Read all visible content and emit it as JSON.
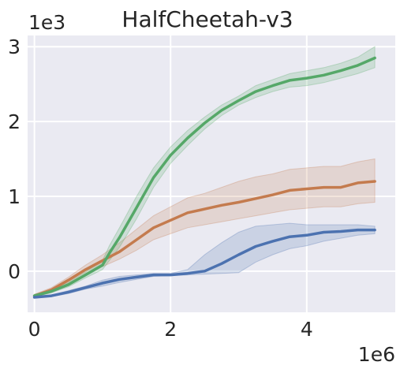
{
  "chart_data": {
    "type": "line",
    "title": "HalfCheetah-v3",
    "xlabel": "",
    "ylabel": "",
    "x_offset_label": "1e6",
    "y_offset_label": "1e3",
    "xlim": [
      -0.1,
      5.3
    ],
    "ylim": [
      -0.55,
      3.15
    ],
    "x_ticks": [
      0,
      2,
      4
    ],
    "x_tick_labels": [
      "0",
      "2",
      "4"
    ],
    "y_ticks": [
      0,
      1,
      2,
      3
    ],
    "y_tick_labels": [
      "0",
      "1",
      "2",
      "3"
    ],
    "grid": true,
    "legend": "none",
    "background": "#EAEAF2",
    "grid_color": "#ffffff",
    "series": [
      {
        "color": "#C47B4E",
        "x": [
          0,
          0.25,
          0.5,
          0.75,
          1.0,
          1.25,
          1.5,
          1.75,
          2.0,
          2.25,
          2.5,
          2.75,
          3.0,
          3.25,
          3.5,
          3.75,
          4.0,
          4.25,
          4.5,
          4.75,
          5.0
        ],
        "y": [
          -0.33,
          -0.25,
          -0.12,
          0.02,
          0.14,
          0.26,
          0.42,
          0.58,
          0.68,
          0.78,
          0.83,
          0.88,
          0.92,
          0.97,
          1.02,
          1.08,
          1.1,
          1.12,
          1.12,
          1.18,
          1.2
        ],
        "lower": [
          -0.35,
          -0.28,
          -0.16,
          -0.04,
          0.06,
          0.16,
          0.28,
          0.42,
          0.5,
          0.58,
          0.62,
          0.66,
          0.7,
          0.74,
          0.78,
          0.82,
          0.84,
          0.86,
          0.86,
          0.9,
          0.92
        ],
        "upper": [
          -0.31,
          -0.22,
          -0.08,
          0.08,
          0.22,
          0.38,
          0.56,
          0.74,
          0.86,
          0.98,
          1.04,
          1.12,
          1.2,
          1.26,
          1.3,
          1.36,
          1.38,
          1.4,
          1.4,
          1.46,
          1.5
        ]
      },
      {
        "color": "#55A868",
        "x": [
          0,
          0.25,
          0.5,
          0.75,
          1.0,
          1.1,
          1.25,
          1.5,
          1.75,
          2.0,
          2.25,
          2.5,
          2.75,
          3.0,
          3.25,
          3.5,
          3.75,
          4.0,
          4.25,
          4.5,
          4.75,
          5.0
        ],
        "y": [
          -0.33,
          -0.27,
          -0.18,
          -0.05,
          0.08,
          0.24,
          0.45,
          0.85,
          1.25,
          1.55,
          1.78,
          1.98,
          2.15,
          2.28,
          2.4,
          2.48,
          2.55,
          2.58,
          2.62,
          2.68,
          2.75,
          2.85
        ],
        "lower": [
          -0.35,
          -0.29,
          -0.21,
          -0.09,
          0.02,
          0.14,
          0.32,
          0.7,
          1.12,
          1.44,
          1.68,
          1.9,
          2.08,
          2.22,
          2.32,
          2.4,
          2.46,
          2.48,
          2.52,
          2.58,
          2.64,
          2.72
        ],
        "upper": [
          -0.31,
          -0.25,
          -0.15,
          -0.01,
          0.14,
          0.34,
          0.58,
          1.0,
          1.38,
          1.66,
          1.88,
          2.06,
          2.22,
          2.34,
          2.48,
          2.56,
          2.64,
          2.68,
          2.72,
          2.78,
          2.86,
          3.0
        ]
      },
      {
        "color": "#4C72B0",
        "x": [
          0,
          0.25,
          0.5,
          0.75,
          1.0,
          1.25,
          1.5,
          1.75,
          2.0,
          2.25,
          2.5,
          2.75,
          3.0,
          3.25,
          3.5,
          3.75,
          4.0,
          4.25,
          4.5,
          4.75,
          5.0
        ],
        "y": [
          -0.35,
          -0.33,
          -0.28,
          -0.22,
          -0.16,
          -0.11,
          -0.08,
          -0.05,
          -0.05,
          -0.03,
          0.0,
          0.1,
          0.22,
          0.33,
          0.4,
          0.46,
          0.48,
          0.52,
          0.53,
          0.55,
          0.55
        ],
        "lower": [
          -0.36,
          -0.34,
          -0.3,
          -0.24,
          -0.2,
          -0.15,
          -0.11,
          -0.07,
          -0.06,
          -0.05,
          -0.04,
          -0.03,
          -0.02,
          0.12,
          0.22,
          0.3,
          0.34,
          0.4,
          0.44,
          0.48,
          0.5
        ],
        "upper": [
          -0.34,
          -0.32,
          -0.26,
          -0.2,
          -0.12,
          -0.07,
          -0.05,
          -0.03,
          -0.03,
          0.02,
          0.22,
          0.38,
          0.52,
          0.6,
          0.62,
          0.64,
          0.62,
          0.62,
          0.62,
          0.62,
          0.6
        ]
      }
    ]
  }
}
